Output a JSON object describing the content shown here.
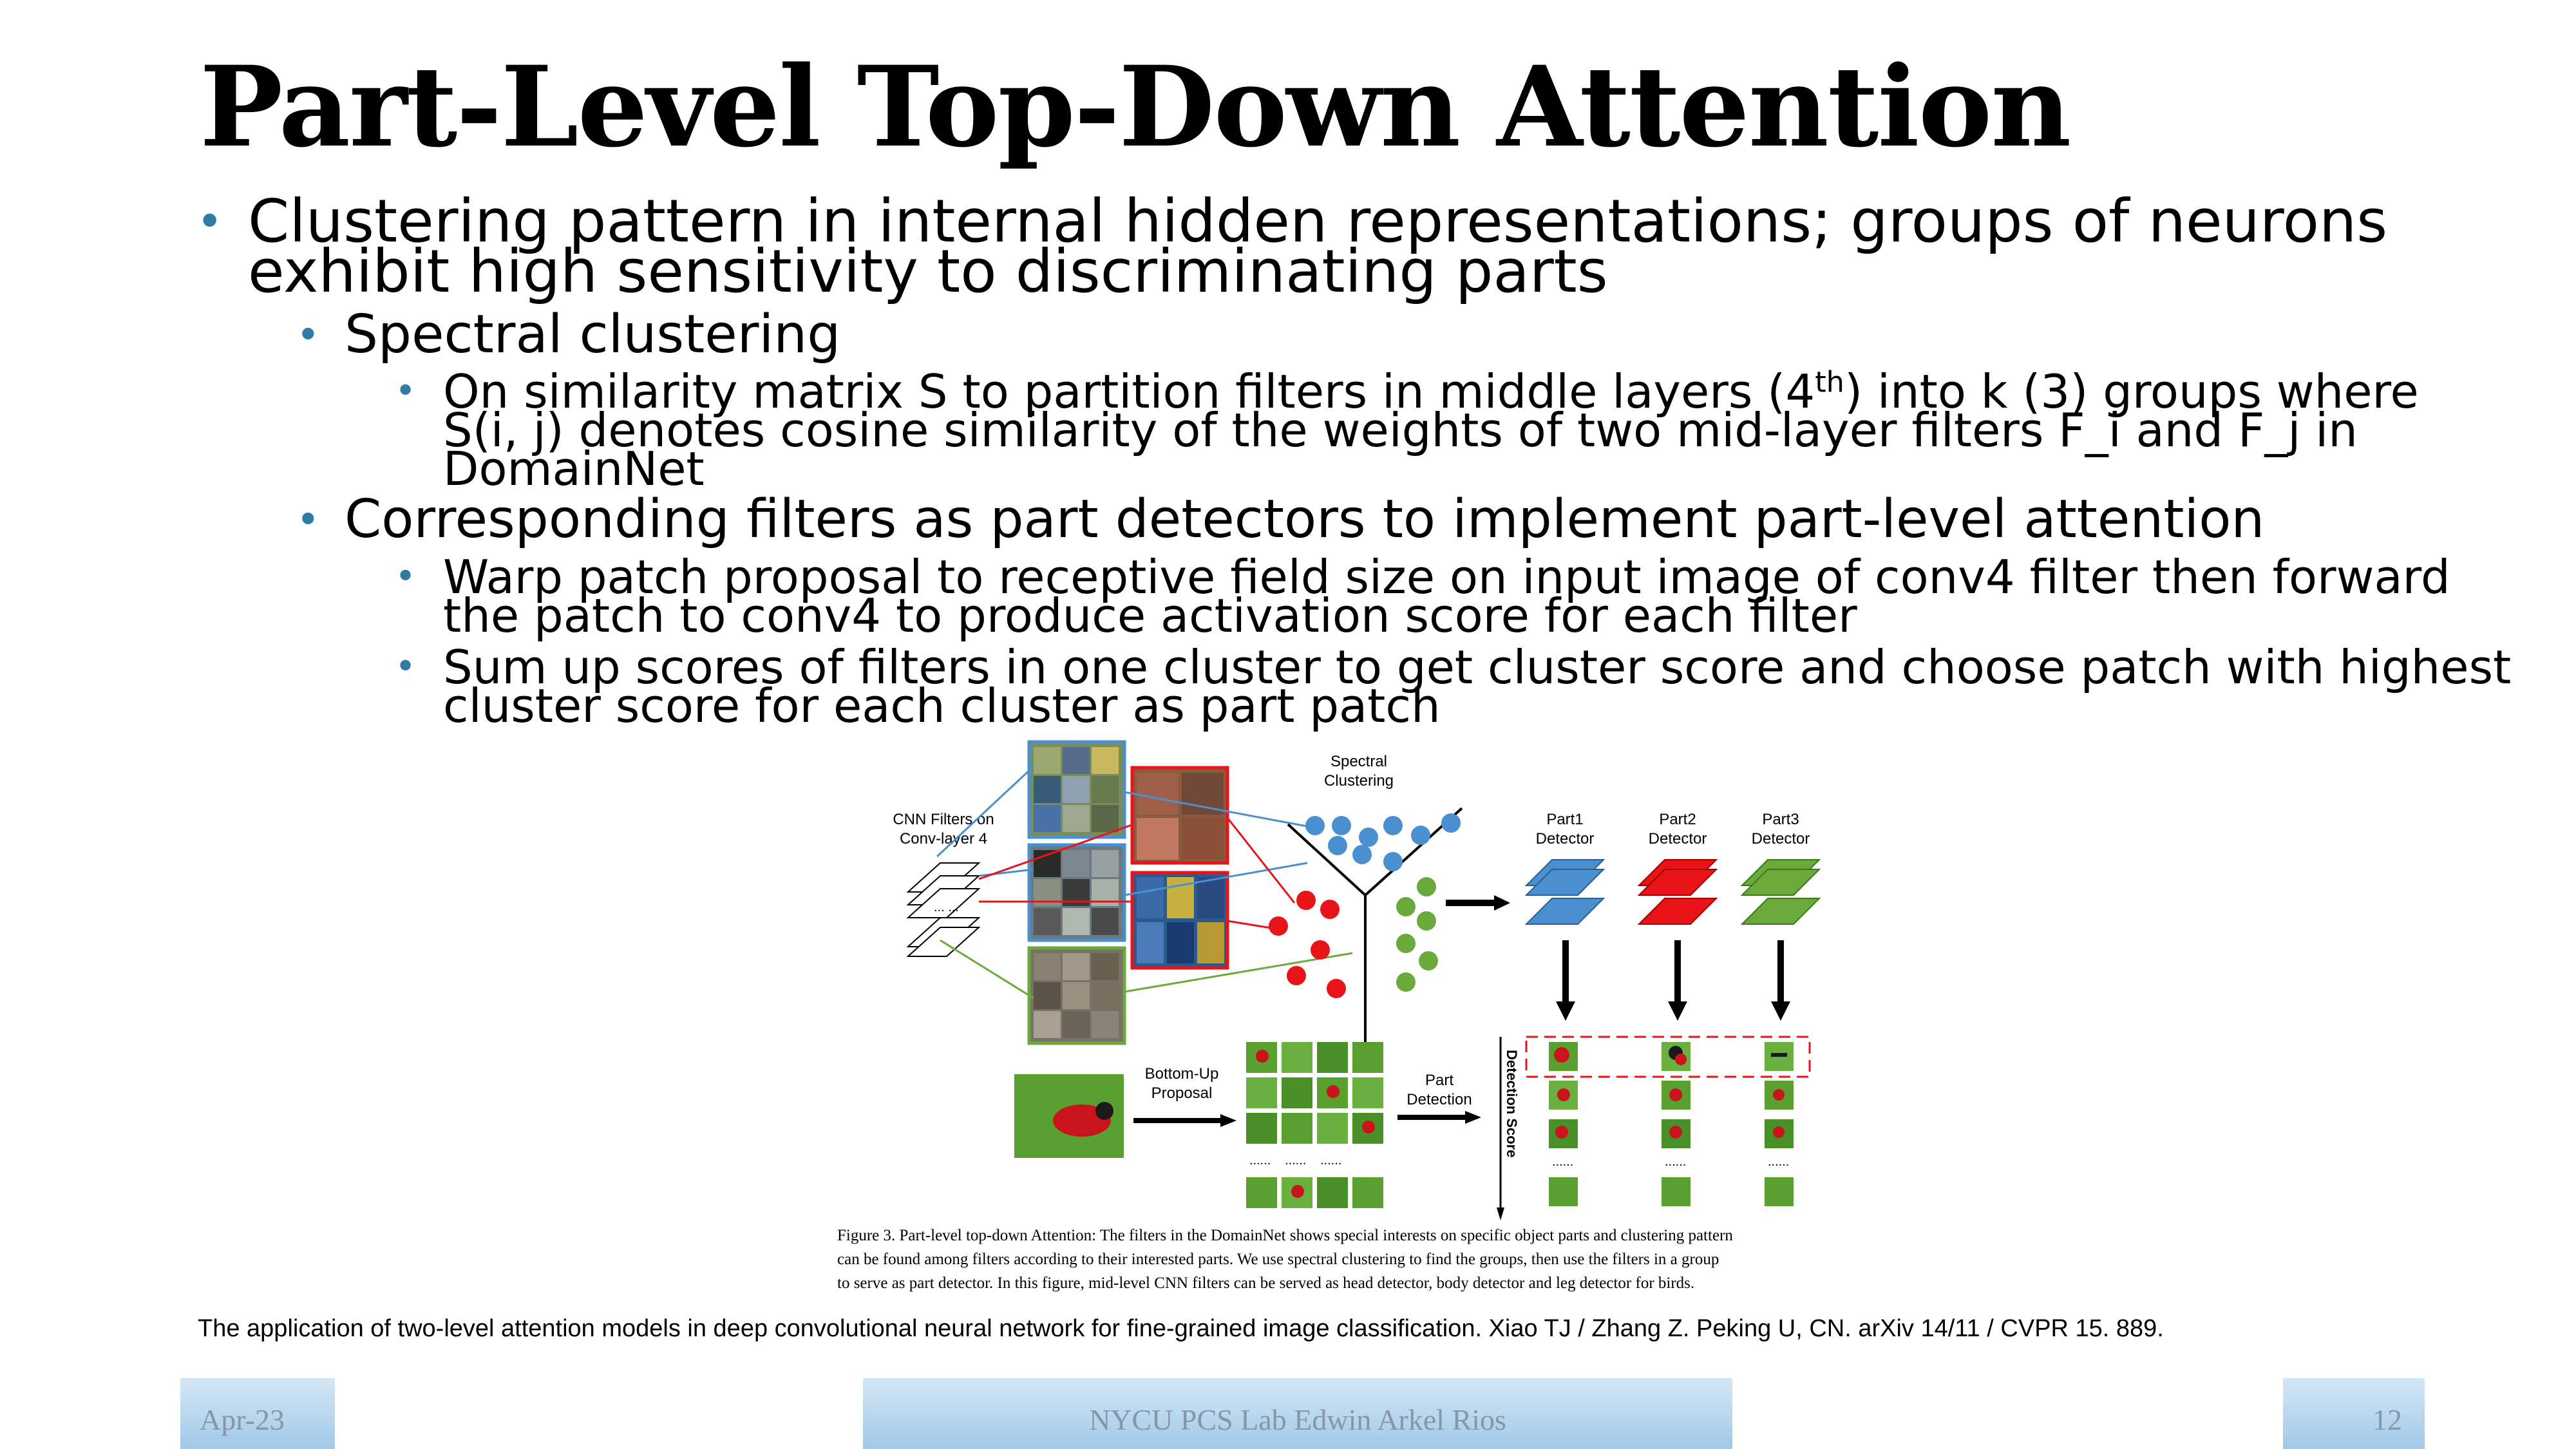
{
  "title": "Part-Level Top-Down Attention",
  "bullets": {
    "b1_line1": "Clustering pattern in internal hidden representations; groups of neurons",
    "b1_line2": "exhibit high sensitivity to discriminating parts",
    "b2": "Spectral clustering",
    "b3_line1_pre": "On similarity matrix S to partition filters in middle layers (4",
    "b3_line1_sup": "th",
    "b3_line1_post": ") into k (3) groups where",
    "b3_line2": "S(i, j) denotes cosine similarity of the weights of two mid-layer filters F_i and F_j in",
    "b3_line3": "DomainNet",
    "b4": "Corresponding filters as part detectors to implement part-level attention",
    "b5_line1": "Warp patch proposal to receptive field size on input image of conv4 filter then forward",
    "b5_line2": "the patch to conv4 to produce activation score for each filter",
    "b6_line1": "Sum up scores of filters in one cluster to get cluster score and choose patch with highest",
    "b6_line2": "cluster score for each cluster as part patch"
  },
  "figure": {
    "cnn_filters_1": "CNN Filters on",
    "cnn_filters_2": "Conv-layer 4",
    "spectral_1": "Spectral",
    "spectral_2": "Clustering",
    "part1_1": "Part1",
    "part2_1": "Part2",
    "part3_1": "Part3",
    "detector": "Detector",
    "bottom_up_1": "Bottom-Up",
    "bottom_up_2": "Proposal",
    "part_det_1": "Part",
    "part_det_2": "Detection",
    "detection_score": "Detection Score",
    "ellipsis": "......",
    "dots_small": "... ...",
    "colors": {
      "blue": "#4A90D0",
      "red": "#E8141A",
      "green": "#6AAA3A"
    }
  },
  "caption": {
    "line1": "Figure 3. Part-level top-down Attention: The filters in the DomainNet shows special interests on specific object parts and clustering pattern",
    "line2": "can be found among filters according to their interested parts.  We use spectral clustering to find the groups, then use the filters in a group",
    "line3": "to serve as part detector. In this figure, mid-level CNN filters can be served as head detector, body detector and leg detector for birds."
  },
  "reference": "The application of two-level attention models in deep convolutional neural network for fine-grained image classification. Xiao TJ / Zhang Z. Peking U, CN. arXiv 14/11 / CVPR 15. 889.",
  "footer": {
    "date": "Apr-23",
    "center": "NYCU PCS Lab Edwin Arkel Rios",
    "page": "12"
  }
}
